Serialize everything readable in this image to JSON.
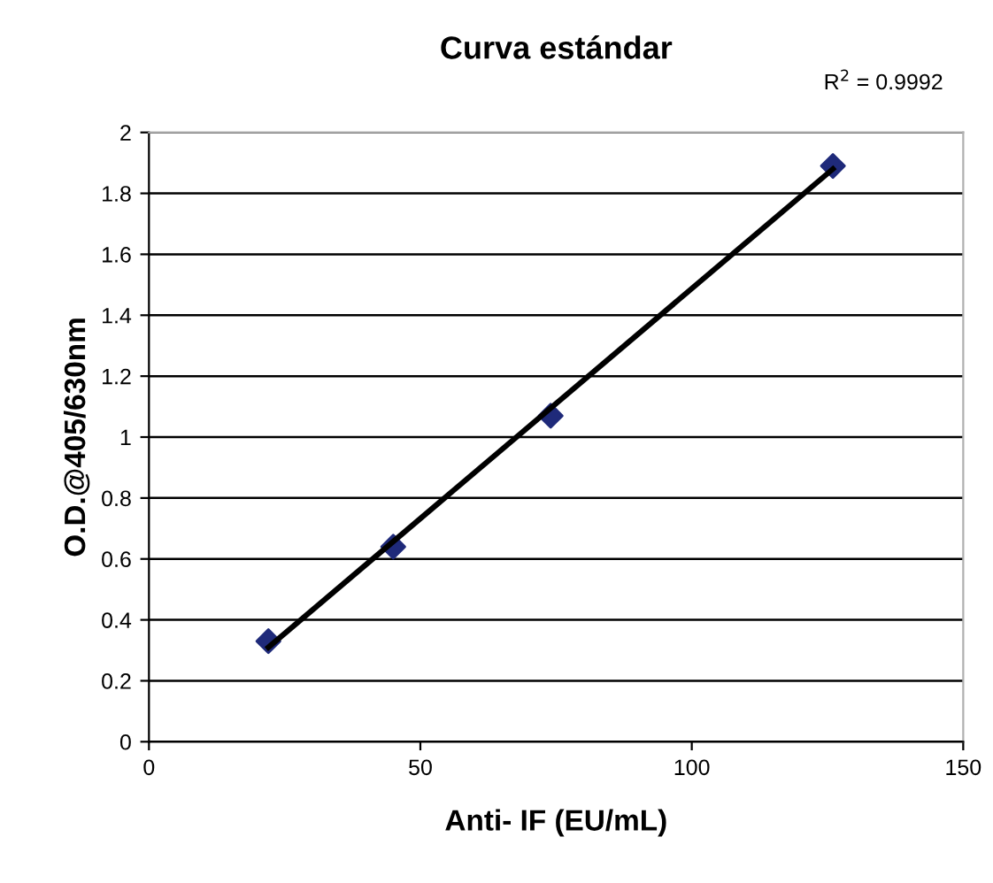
{
  "chart_data": {
    "type": "scatter",
    "title": "Curva estándar",
    "xlabel": "Anti- IF (EU/mL)",
    "ylabel": "O.D.@405/630nm",
    "annotations": [
      "R$^{2}$ = 0.9992"
    ],
    "series": [
      {
        "color": "#1f2a7a",
        "marker": "diamond",
        "x": [
          22,
          45,
          74,
          126
        ],
        "values": [
          0.33,
          0.64,
          1.07,
          1.89
        ]
      },
      {
        "type": "line",
        "color": "#000000",
        "marker": "none",
        "line_style": "solid",
        "x": [
          22,
          126
        ],
        "values": [
          0.31,
          1.88
        ]
      }
    ],
    "xlim": [
      0,
      150
    ],
    "xticks": [
      0,
      50,
      100,
      150
    ],
    "ylim": [
      0,
      2
    ],
    "yticks": [
      0,
      0.2,
      0.4,
      0.6,
      0.8,
      1,
      1.2,
      1.4,
      1.6,
      1.8,
      2
    ],
    "grid": "y",
    "legend": false
  }
}
